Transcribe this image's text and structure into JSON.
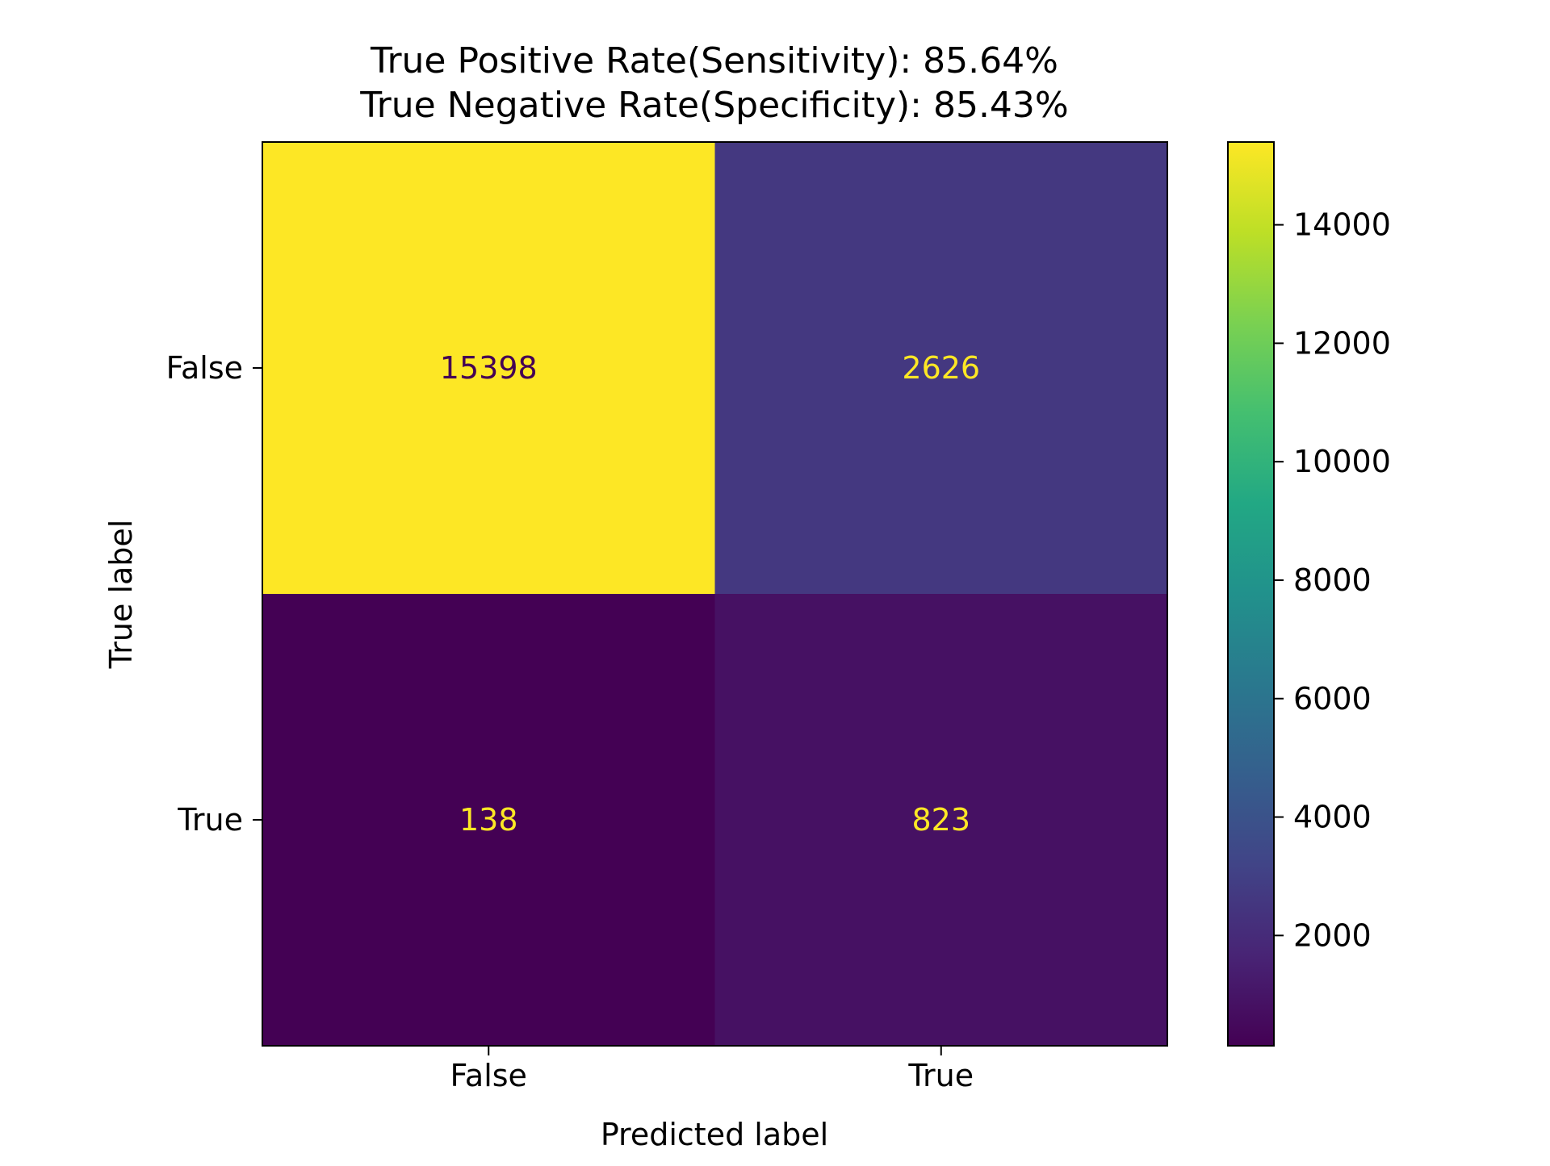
{
  "chart_data": {
    "type": "heatmap",
    "title_lines": [
      "True Positive Rate(Sensitivity): 85.64%",
      "True Negative Rate(Specificity): 85.43%"
    ],
    "xlabel": "Predicted label",
    "ylabel": "True label",
    "x_categories": [
      "False",
      "True"
    ],
    "y_categories": [
      "False",
      "True"
    ],
    "matrix": [
      [
        15398,
        2626
      ],
      [
        138,
        823
      ]
    ],
    "colormap": "viridis",
    "colorbar": {
      "range": [
        138,
        15398
      ],
      "ticks": [
        2000,
        4000,
        6000,
        8000,
        10000,
        12000,
        14000
      ]
    },
    "cell_text_colors": {
      "dark_bg": "#fde725",
      "light_bg": "#440154"
    }
  }
}
